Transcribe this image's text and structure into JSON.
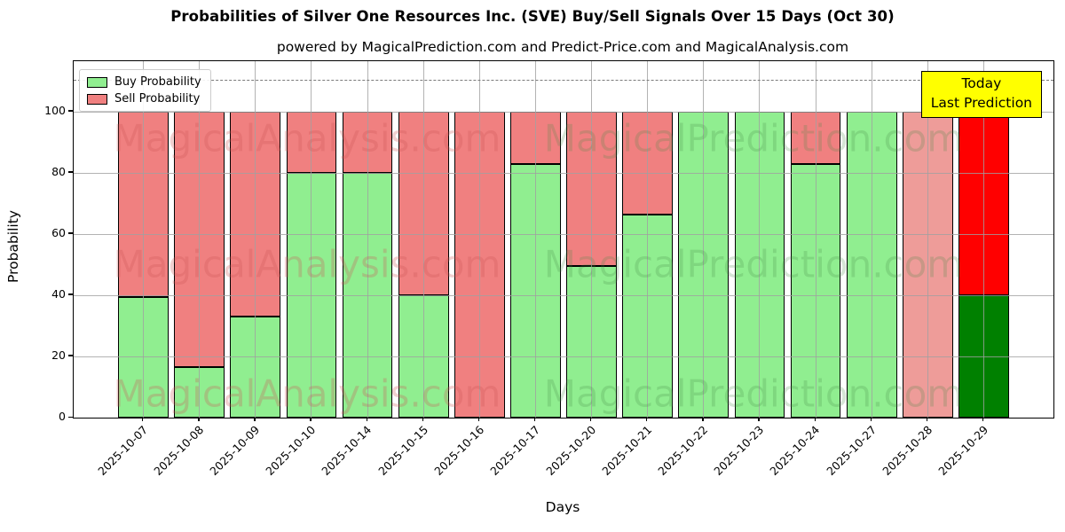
{
  "title": "Probabilities of Silver One Resources Inc. (SVE) Buy/Sell Signals Over 15 Days (Oct 30)",
  "subtitle": "powered by MagicalPrediction.com and Predict-Price.com and MagicalAnalysis.com",
  "legend": {
    "buy_label": "Buy Probability",
    "sell_label": "Sell Probability"
  },
  "annotation": {
    "line1": "Today",
    "line2": "Last Prediction"
  },
  "axes": {
    "xlabel": "Days",
    "ylabel": "Probability"
  },
  "watermarks": {
    "left_text": "MagicalAnalysis.com",
    "right_text": "MagicalPrediction.com"
  },
  "colors": {
    "buy_normal": "#90EE90",
    "sell_normal": "#F08080",
    "buy_today": "#008000",
    "sell_today": "#FF0000",
    "sell_faded": "#EE9C99",
    "annotation_bg": "#FFFF00",
    "bar_edge": "#000000",
    "watermark_left": "rgba(205,85,85,0.28)",
    "watermark_right": "rgba(70,135,70,0.22)"
  },
  "chart_data": {
    "type": "bar",
    "stacked": true,
    "title": "Probabilities of Silver One Resources Inc. (SVE) Buy/Sell Signals Over 15 Days (Oct 30)",
    "xlabel": "Days",
    "ylabel": "Probability",
    "legend_position": "upper left",
    "grid": true,
    "ylim": [
      0,
      116.5
    ],
    "yticks": [
      0,
      20,
      40,
      60,
      80,
      100
    ],
    "guide_line_y": 110.5,
    "categories": [
      "2025-10-07",
      "2025-10-08",
      "2025-10-09",
      "2025-10-10",
      "2025-10-14",
      "2025-10-15",
      "2025-10-16",
      "2025-10-17",
      "2025-10-20",
      "2025-10-21",
      "2025-10-22",
      "2025-10-23",
      "2025-10-24",
      "2025-10-27",
      "2025-10-28",
      "2025-10-29"
    ],
    "series": [
      {
        "name": "Buy Probability",
        "values": [
          39.5,
          16.5,
          33,
          80,
          80,
          40,
          0,
          83,
          49.5,
          66.5,
          100,
          100,
          83,
          100,
          0,
          40
        ],
        "colors": [
          "#90EE90",
          "#90EE90",
          "#90EE90",
          "#90EE90",
          "#90EE90",
          "#90EE90",
          "#90EE90",
          "#90EE90",
          "#90EE90",
          "#90EE90",
          "#90EE90",
          "#90EE90",
          "#90EE90",
          "#90EE90",
          "#90EE90",
          "#008000"
        ]
      },
      {
        "name": "Sell Probability",
        "values": [
          60.5,
          83.5,
          67,
          20,
          20,
          60,
          100,
          17,
          50.5,
          33.5,
          0,
          0,
          17,
          0,
          100,
          60
        ],
        "colors": [
          "#F08080",
          "#F08080",
          "#F08080",
          "#F08080",
          "#F08080",
          "#F08080",
          "#F08080",
          "#F08080",
          "#F08080",
          "#F08080",
          "#F08080",
          "#F08080",
          "#F08080",
          "#F08080",
          "#EE9C99",
          "#FF0000"
        ]
      }
    ]
  }
}
